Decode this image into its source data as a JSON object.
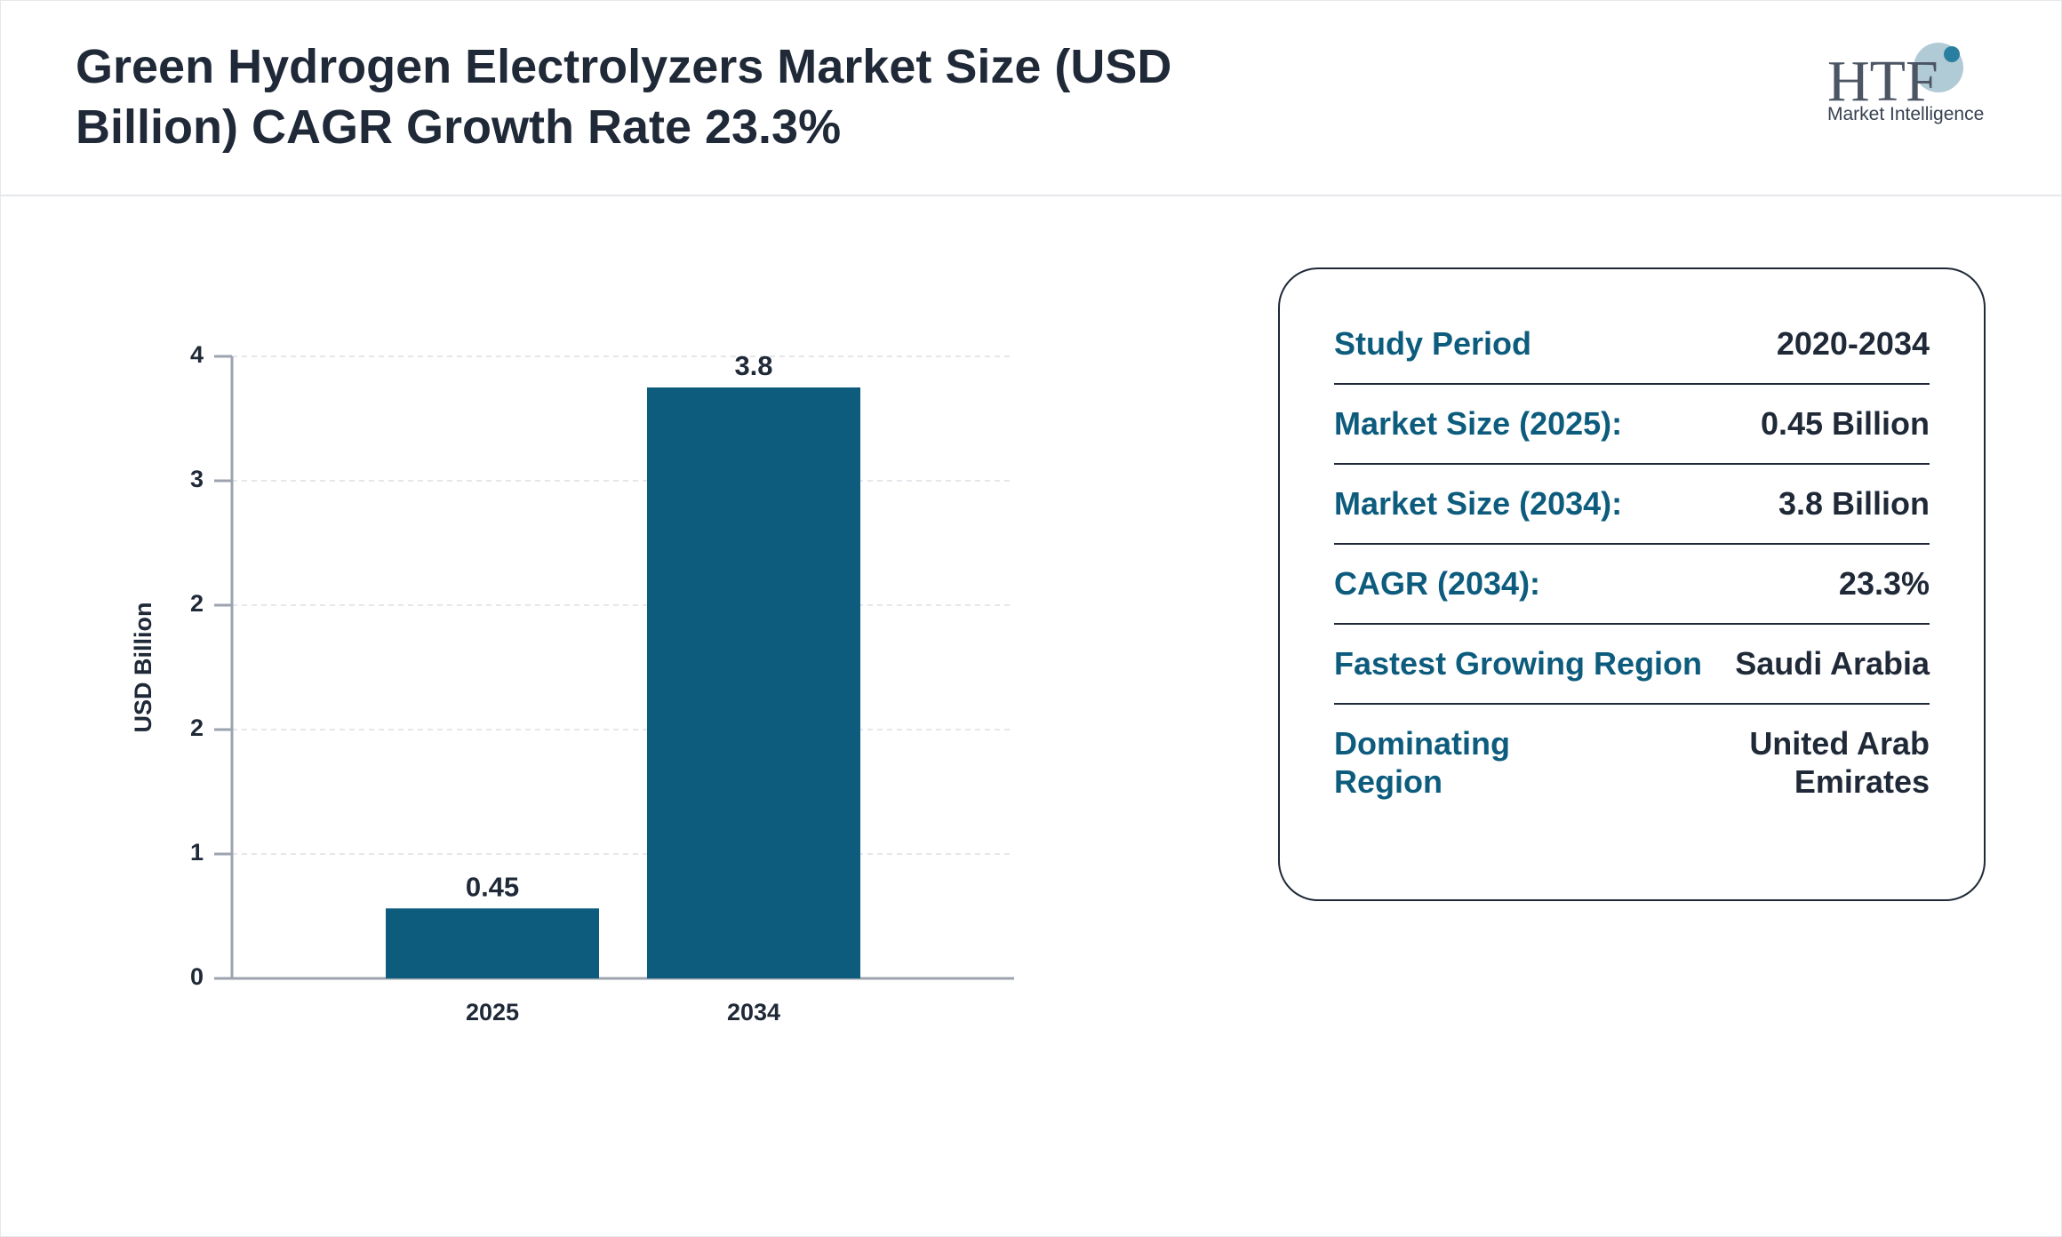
{
  "chart_data": {
    "type": "bar",
    "title": "Green Hydrogen Electrolyzers Market Size (USD Billion) CAGR Growth Rate 23.3%",
    "y_label": "USD Billion",
    "categories": [
      "2025",
      "2034"
    ],
    "values": [
      0.45,
      3.8
    ],
    "color": "#0d5c7d",
    "ylim": [
      0,
      4
    ],
    "yticks": [
      0,
      {
        "value": 0.8,
        "label": "1"
      },
      {
        "value": 1.6,
        "label": "2"
      },
      {
        "value": 2.4,
        "label": "2"
      },
      {
        "value": 3.2,
        "label": "3"
      },
      4
    ],
    "grid": true
  },
  "logo": {
    "name": "HTF",
    "tagline": "Market Intelligence"
  },
  "info_table": {
    "rows": [
      [
        "Study Period",
        "2020-2034"
      ],
      [
        "Market Size (2025):",
        "0.45 Billion"
      ],
      [
        "Market Size (2034):",
        "3.8 Billion"
      ],
      [
        "CAGR (2034):",
        "23.3%"
      ],
      [
        "Fastest Growing Region",
        "Saudi Arabia"
      ],
      [
        "Dominating Region",
        "United Arab Emirates"
      ]
    ]
  }
}
